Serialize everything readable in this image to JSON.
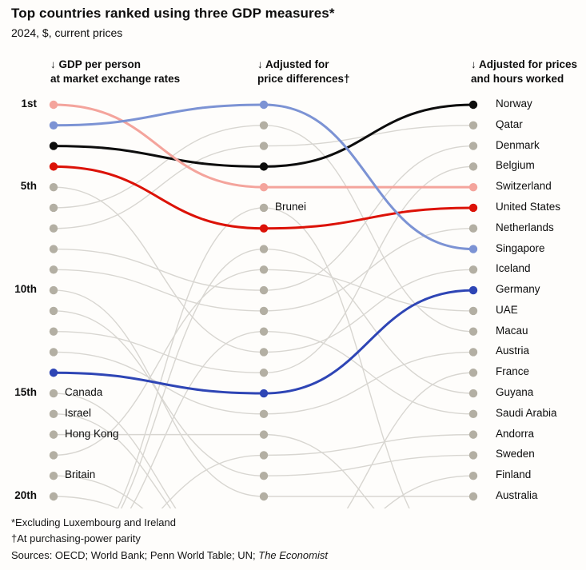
{
  "header": {
    "title": "Top countries ranked using three GDP measures*",
    "subtitle": "2024, $, current prices"
  },
  "footer": {
    "note1": "*Excluding Luxembourg and Ireland",
    "note2": "†At purchasing-power parity",
    "sources_prefix": "Sources: OECD; World Bank; Penn World Table; UN; ",
    "sources_italic": "The Economist"
  },
  "chart_data": {
    "type": "bump",
    "title": "Top countries ranked using three GDP measures*",
    "subtitle": "2024, $, current prices",
    "columns": [
      {
        "line1": "↓ GDP per person",
        "line2": "at market exchange rates"
      },
      {
        "line1": "↓ Adjusted for",
        "line2": "price differences†"
      },
      {
        "line1": "↓ Adjusted for prices",
        "line2": "and hours worked"
      }
    ],
    "rank_axis": {
      "ticks": [
        {
          "label": "1st",
          "rank": 1
        },
        {
          "label": "5th",
          "rank": 5
        },
        {
          "label": "10th",
          "rank": 10
        },
        {
          "label": "15th",
          "rank": 15
        },
        {
          "label": "20th",
          "rank": 20
        }
      ],
      "min": 1,
      "max": 20
    },
    "colors": {
      "norway": "#0d0d0d",
      "switzerland": "#f4a49c",
      "united_states": "#dc1207",
      "singapore": "#7c93d4",
      "germany": "#2e45b5",
      "gray_line": "#d8d6d1",
      "gray_dot": "#b3afa3"
    },
    "series": [
      {
        "name": "Norway",
        "ranks": [
          3,
          4,
          1
        ],
        "highlight": true,
        "color": "#0d0d0d"
      },
      {
        "name": "Qatar",
        "ranks": [
          7,
          3,
          2
        ],
        "highlight": false
      },
      {
        "name": "Denmark",
        "ranks": [
          8,
          10,
          3
        ],
        "highlight": false
      },
      {
        "name": "Belgium",
        "ranks": [
          12,
          14,
          4
        ],
        "highlight": false
      },
      {
        "name": "Switzerland",
        "ranks": [
          1,
          5,
          5
        ],
        "highlight": true,
        "color": "#f4a49c"
      },
      {
        "name": "United States",
        "ranks": [
          4,
          7,
          6
        ],
        "highlight": true,
        "color": "#dc1207"
      },
      {
        "name": "Netherlands",
        "ranks": [
          9,
          11,
          7
        ],
        "highlight": false
      },
      {
        "name": "Singapore",
        "ranks": [
          2,
          1,
          8
        ],
        "highlight": true,
        "color": "#7c93d4"
      },
      {
        "name": "Iceland",
        "ranks": [
          5,
          13,
          9
        ],
        "highlight": false
      },
      {
        "name": "Germany",
        "ranks": [
          14,
          15,
          10
        ],
        "highlight": true,
        "color": "#2e45b5"
      },
      {
        "name": "UAE",
        "ranks": [
          18,
          9,
          11
        ],
        "highlight": false
      },
      {
        "name": "Macau",
        "ranks": [
          6,
          2,
          12
        ],
        "highlight": false
      },
      {
        "name": "Austria",
        "ranks": [
          13,
          16,
          13
        ],
        "highlight": false
      },
      {
        "name": "France",
        "ranks": [
          null,
          null,
          14
        ],
        "highlight": false
      },
      {
        "name": "Guyana",
        "ranks": [
          null,
          8,
          15
        ],
        "highlight": false
      },
      {
        "name": "Saudi Arabia",
        "ranks": [
          null,
          12,
          16
        ],
        "highlight": false
      },
      {
        "name": "Andorra",
        "ranks": [
          null,
          18,
          17
        ],
        "highlight": false
      },
      {
        "name": "Sweden",
        "ranks": [
          11,
          19,
          18
        ],
        "highlight": false
      },
      {
        "name": "Finland",
        "ranks": [
          20,
          null,
          19
        ],
        "highlight": false
      },
      {
        "name": "Australia",
        "ranks": [
          10,
          20,
          20
        ],
        "highlight": false
      },
      {
        "name": "Canada",
        "ranks": [
          15,
          null,
          null
        ],
        "highlight": false
      },
      {
        "name": "Israel",
        "ranks": [
          16,
          null,
          null
        ],
        "highlight": false
      },
      {
        "name": "Hong Kong",
        "ranks": [
          17,
          17,
          null
        ],
        "highlight": false
      },
      {
        "name": "Britain",
        "ranks": [
          19,
          null,
          null
        ],
        "highlight": false
      },
      {
        "name": "Brunei",
        "ranks": [
          null,
          6,
          null
        ],
        "highlight": false
      }
    ],
    "annotations": [
      {
        "text": "Canada",
        "col": 0,
        "rank": 15
      },
      {
        "text": "Israel",
        "col": 0,
        "rank": 16
      },
      {
        "text": "Hong Kong",
        "col": 0,
        "rank": 17
      },
      {
        "text": "Britain",
        "col": 0,
        "rank": 19
      },
      {
        "text": "Brunei",
        "col": 1,
        "rank": 6
      },
      {
        "text": "Norway",
        "col": 2,
        "rank": 1
      },
      {
        "text": "Qatar",
        "col": 2,
        "rank": 2
      },
      {
        "text": "Denmark",
        "col": 2,
        "rank": 3
      },
      {
        "text": "Belgium",
        "col": 2,
        "rank": 4
      },
      {
        "text": "Switzerland",
        "col": 2,
        "rank": 5
      },
      {
        "text": "United States",
        "col": 2,
        "rank": 6
      },
      {
        "text": "Netherlands",
        "col": 2,
        "rank": 7
      },
      {
        "text": "Singapore",
        "col": 2,
        "rank": 8
      },
      {
        "text": "Iceland",
        "col": 2,
        "rank": 9
      },
      {
        "text": "Germany",
        "col": 2,
        "rank": 10
      },
      {
        "text": "UAE",
        "col": 2,
        "rank": 11
      },
      {
        "text": "Macau",
        "col": 2,
        "rank": 12
      },
      {
        "text": "Austria",
        "col": 2,
        "rank": 13
      },
      {
        "text": "France",
        "col": 2,
        "rank": 14
      },
      {
        "text": "Guyana",
        "col": 2,
        "rank": 15
      },
      {
        "text": "Saudi Arabia",
        "col": 2,
        "rank": 16
      },
      {
        "text": "Andorra",
        "col": 2,
        "rank": 17
      },
      {
        "text": "Sweden",
        "col": 2,
        "rank": 18
      },
      {
        "text": "Finland",
        "col": 2,
        "rank": 19
      },
      {
        "text": "Australia",
        "col": 2,
        "rank": 20
      }
    ]
  }
}
